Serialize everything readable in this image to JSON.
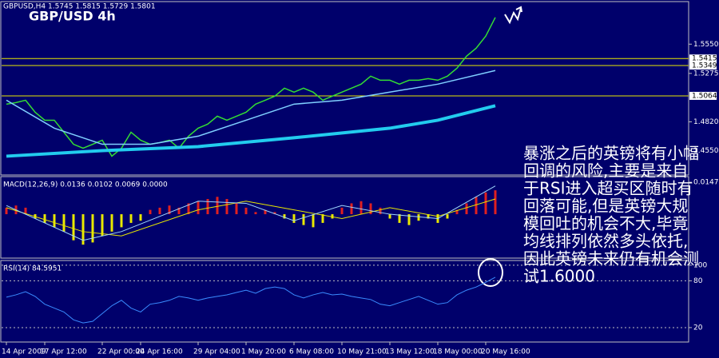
{
  "chart_data": [
    {
      "type": "line",
      "title": "GBP/USD 4h",
      "subtitle": "GBPUSD,H4  1.5745 1.5815 1.5729 1.5801",
      "annotation": [
        "暴涨之后的英镑将有小幅",
        "回调的风险,主要是来自",
        "于RSI进入超买区随时有",
        "回落可能,但是英镑大规",
        "模回吐的机会不大,毕竟",
        "均线排列依然多头依托,",
        "因此英镑未来仍有机会测",
        "试1.6000"
      ],
      "xlim": [
        0,
        51
      ],
      "xticks": [
        {
          "value": 0,
          "label": "14 Apr 2009"
        },
        {
          "value": 4,
          "label": "17 Apr 12:00"
        },
        {
          "value": 10,
          "label": "22 Apr 00:00"
        },
        {
          "value": 14,
          "label": "24 Apr 16:00"
        },
        {
          "value": 20,
          "label": "29 Apr 04:00"
        },
        {
          "value": 25,
          "label": "1 May 20:00"
        },
        {
          "value": 30,
          "label": "6 May 08:00"
        },
        {
          "value": 35,
          "label": "10 May 21:00"
        },
        {
          "value": 40,
          "label": "13 May 12:00"
        },
        {
          "value": 45,
          "label": "18 May 00:00"
        },
        {
          "value": 50,
          "label": "20 May 16:00"
        }
      ],
      "ylim": [
        1.432,
        1.595
      ],
      "yticks": [
        {
          "value": 1.555,
          "label": "1.5550"
        },
        1.5275,
        {
          "value": 1.482,
          "label": "1.4820"
        },
        {
          "value": 1.455,
          "label": "1.4550"
        }
      ],
      "hlines": [
        1.5415,
        1.5349,
        1.5064
      ],
      "hline_color": "#e8e800",
      "series": [
        {
          "type": "line",
          "color": "#33dd33",
          "width": 1.5,
          "x": [
            0,
            1,
            2,
            3,
            4,
            5,
            6,
            7,
            8,
            9,
            10,
            11,
            12,
            13,
            14,
            15,
            16,
            17,
            18,
            19,
            20,
            21,
            22,
            23,
            24,
            25,
            26,
            27,
            28,
            29,
            30,
            31,
            32,
            33,
            34,
            35,
            36,
            37,
            38,
            39,
            40,
            41,
            42,
            43,
            44,
            45,
            46,
            47,
            48,
            49,
            50,
            51
          ],
          "values": [
            1.4986,
            1.5001,
            1.5023,
            1.491,
            1.4835,
            1.4835,
            1.4722,
            1.4609,
            1.4572,
            1.4609,
            1.4647,
            1.4497,
            1.4572,
            1.4722,
            1.4647,
            1.4609,
            1.4624,
            1.4647,
            1.4572,
            1.4685,
            1.476,
            1.4798,
            1.4873,
            1.4835,
            1.4873,
            1.491,
            1.4986,
            1.5023,
            1.5061,
            1.5136,
            1.5099,
            1.5136,
            1.5099,
            1.5023,
            1.5061,
            1.5099,
            1.5136,
            1.5174,
            1.5249,
            1.5211,
            1.5211,
            1.5174,
            1.5211,
            1.5211,
            1.5226,
            1.5211,
            1.5249,
            1.5324,
            1.5437,
            1.5512,
            1.5625,
            1.5801
          ]
        },
        {
          "type": "line",
          "color": "#7fcfff",
          "width": 1.5,
          "x": [
            0,
            5,
            10,
            15,
            20,
            25,
            30,
            35,
            40,
            45,
            51
          ],
          "values": [
            1.5023,
            1.476,
            1.4609,
            1.4609,
            1.4685,
            1.4835,
            1.4986,
            1.5023,
            1.5099,
            1.5174,
            1.5302
          ]
        },
        {
          "type": "line",
          "color": "#22ccee",
          "width": 4,
          "x": [
            0,
            10,
            20,
            30,
            40,
            45,
            51
          ],
          "values": [
            1.4497,
            1.4549,
            1.4587,
            1.467,
            1.476,
            1.4835,
            1.4971
          ]
        }
      ]
    },
    {
      "type": "bar",
      "title": "MACD(12,26,9) 0.0136 0.0102 0.0069 0.0000",
      "ylim": [
        -0.0202,
        0.0173
      ],
      "yticks": [
        0.0147
      ],
      "series": [
        {
          "type": "bar",
          "color": "#e02020",
          "negative_color": "#e8e800",
          "values": [
            0.003,
            0.004,
            0.003,
            -0.002,
            -0.004,
            -0.006,
            -0.008,
            -0.012,
            -0.014,
            -0.013,
            -0.01,
            -0.008,
            -0.006,
            -0.004,
            -0.003,
            0.002,
            0.003,
            0.004,
            0.003,
            0.005,
            0.006,
            0.007,
            0.008,
            0.007,
            0.005,
            0.003,
            0.001,
            0.002,
            0.001,
            -0.002,
            -0.004,
            -0.005,
            -0.006,
            -0.004,
            -0.002,
            0.003,
            0.005,
            0.006,
            0.005,
            0.003,
            -0.002,
            -0.004,
            -0.005,
            -0.003,
            -0.002,
            -0.004,
            -0.002,
            0.002,
            0.005,
            0.008,
            0.01,
            0.011
          ]
        },
        {
          "type": "line",
          "color": "#e8e800",
          "width": 1,
          "x": [
            0,
            8,
            12,
            20,
            25,
            30,
            35,
            40,
            45,
            51
          ],
          "values": [
            0.003,
            -0.008,
            -0.01,
            0.002,
            0.006,
            0.002,
            -0.002,
            0.003,
            -0.001,
            0.007
          ]
        },
        {
          "type": "line",
          "color": "#9fd8ff",
          "width": 1,
          "x": [
            0,
            8,
            12,
            20,
            25,
            30,
            35,
            40,
            45,
            51
          ],
          "values": [
            0.004,
            -0.012,
            -0.008,
            0.006,
            0.005,
            -0.003,
            0.004,
            0,
            -0.002,
            0.013
          ]
        }
      ]
    },
    {
      "type": "line",
      "title": "RSI(14) 84.5951",
      "ylim": [
        1.5,
        106
      ],
      "yticks": [
        100,
        80,
        20
      ],
      "series": [
        {
          "type": "line",
          "color": "#3a8cff",
          "width": 1,
          "x": [
            0,
            1,
            2,
            3,
            4,
            5,
            6,
            7,
            8,
            9,
            10,
            11,
            12,
            13,
            14,
            15,
            16,
            17,
            18,
            19,
            20,
            21,
            22,
            23,
            24,
            25,
            26,
            27,
            28,
            29,
            30,
            31,
            32,
            33,
            34,
            35,
            36,
            37,
            38,
            39,
            40,
            41,
            42,
            43,
            44,
            45,
            46,
            47,
            48,
            49,
            50,
            51
          ],
          "values": [
            59,
            62,
            66,
            60,
            50,
            45,
            40,
            30,
            26,
            28,
            38,
            48,
            55,
            45,
            40,
            50,
            52,
            55,
            60,
            58,
            55,
            58,
            60,
            62,
            65,
            68,
            64,
            70,
            72,
            70,
            62,
            58,
            62,
            65,
            62,
            63,
            60,
            58,
            56,
            50,
            48,
            52,
            56,
            60,
            55,
            50,
            52,
            62,
            68,
            72,
            78,
            84.6
          ]
        }
      ]
    }
  ]
}
